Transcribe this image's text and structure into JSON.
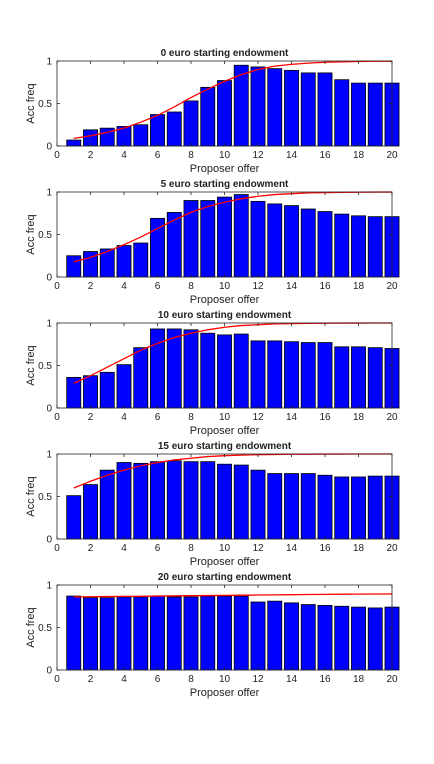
{
  "chart_data": [
    {
      "type": "bar",
      "title": "0 euro starting endowment",
      "xlabel": "Proposer offer",
      "ylabel": "Acc freq",
      "xlim": [
        0,
        20
      ],
      "ylim": [
        0,
        1
      ],
      "x_ticks": [
        0,
        2,
        4,
        6,
        8,
        10,
        12,
        14,
        16,
        18,
        20
      ],
      "y_ticks": [
        0,
        0.5,
        1
      ],
      "categories": [
        1,
        2,
        3,
        4,
        5,
        6,
        7,
        8,
        9,
        10,
        11,
        12,
        13,
        14,
        15,
        16,
        17,
        18,
        19,
        20
      ],
      "values": [
        0.07,
        0.19,
        0.21,
        0.23,
        0.25,
        0.37,
        0.4,
        0.53,
        0.69,
        0.77,
        0.95,
        0.93,
        0.91,
        0.89,
        0.86,
        0.86,
        0.78,
        0.74,
        0.74,
        0.74
      ],
      "fit_line": {
        "x": [
          1,
          2,
          3,
          4,
          5,
          6,
          7,
          8,
          9,
          10,
          11,
          12,
          13,
          14,
          15,
          16,
          17,
          18,
          19,
          20
        ],
        "y": [
          0.09,
          0.12,
          0.16,
          0.21,
          0.28,
          0.36,
          0.46,
          0.57,
          0.67,
          0.76,
          0.84,
          0.9,
          0.94,
          0.96,
          0.975,
          0.985,
          0.99,
          0.995,
          0.997,
          0.998
        ]
      },
      "bar_color": "#0000ff",
      "line_color": "#ff0000",
      "grid": false
    },
    {
      "type": "bar",
      "title": "5 euro starting endowment",
      "xlabel": "Proposer offer",
      "ylabel": "Acc freq",
      "xlim": [
        0,
        20
      ],
      "ylim": [
        0,
        1
      ],
      "x_ticks": [
        0,
        2,
        4,
        6,
        8,
        10,
        12,
        14,
        16,
        18,
        20
      ],
      "y_ticks": [
        0,
        0.5,
        1
      ],
      "categories": [
        1,
        2,
        3,
        4,
        5,
        6,
        7,
        8,
        9,
        10,
        11,
        12,
        13,
        14,
        15,
        16,
        17,
        18,
        19,
        20
      ],
      "values": [
        0.25,
        0.3,
        0.33,
        0.37,
        0.4,
        0.69,
        0.76,
        0.9,
        0.9,
        0.94,
        0.97,
        0.89,
        0.86,
        0.84,
        0.8,
        0.77,
        0.74,
        0.72,
        0.71,
        0.71
      ],
      "fit_line": {
        "x": [
          1,
          2,
          3,
          4,
          5,
          6,
          7,
          8,
          9,
          10,
          11,
          12,
          13,
          14,
          15,
          16,
          17,
          18,
          19,
          20
        ],
        "y": [
          0.18,
          0.23,
          0.3,
          0.38,
          0.47,
          0.57,
          0.67,
          0.76,
          0.83,
          0.88,
          0.92,
          0.95,
          0.97,
          0.98,
          0.99,
          0.993,
          0.996,
          0.998,
          0.999,
          0.999
        ]
      },
      "bar_color": "#0000ff",
      "line_color": "#ff0000",
      "grid": false
    },
    {
      "type": "bar",
      "title": "10 euro starting endowment",
      "xlabel": "Proposer offer",
      "ylabel": "Acc freq",
      "xlim": [
        0,
        20
      ],
      "ylim": [
        0,
        1
      ],
      "x_ticks": [
        0,
        2,
        4,
        6,
        8,
        10,
        12,
        14,
        16,
        18,
        20
      ],
      "y_ticks": [
        0,
        0.5,
        1
      ],
      "categories": [
        1,
        2,
        3,
        4,
        5,
        6,
        7,
        8,
        9,
        10,
        11,
        12,
        13,
        14,
        15,
        16,
        17,
        18,
        19,
        20
      ],
      "values": [
        0.36,
        0.38,
        0.42,
        0.51,
        0.71,
        0.93,
        0.93,
        0.92,
        0.88,
        0.86,
        0.87,
        0.79,
        0.79,
        0.78,
        0.77,
        0.77,
        0.72,
        0.72,
        0.71,
        0.7
      ],
      "fit_line": {
        "x": [
          1,
          2,
          3,
          4,
          5,
          6,
          7,
          8,
          9,
          10,
          11,
          12,
          13,
          14,
          15,
          16,
          17,
          18,
          19,
          20
        ],
        "y": [
          0.29,
          0.38,
          0.48,
          0.58,
          0.68,
          0.76,
          0.83,
          0.88,
          0.92,
          0.95,
          0.97,
          0.98,
          0.99,
          0.993,
          0.996,
          0.998,
          0.999,
          0.999,
          1.0,
          1.0
        ]
      },
      "bar_color": "#0000ff",
      "line_color": "#ff0000",
      "grid": false
    },
    {
      "type": "bar",
      "title": "15 euro starting endowment",
      "xlabel": "Proposer offer",
      "ylabel": "Acc freq",
      "xlim": [
        0,
        20
      ],
      "ylim": [
        0,
        1
      ],
      "x_ticks": [
        0,
        2,
        4,
        6,
        8,
        10,
        12,
        14,
        16,
        18,
        20
      ],
      "y_ticks": [
        0,
        0.5,
        1
      ],
      "categories": [
        1,
        2,
        3,
        4,
        5,
        6,
        7,
        8,
        9,
        10,
        11,
        12,
        13,
        14,
        15,
        16,
        17,
        18,
        19,
        20
      ],
      "values": [
        0.51,
        0.64,
        0.81,
        0.9,
        0.89,
        0.91,
        0.92,
        0.91,
        0.91,
        0.88,
        0.87,
        0.81,
        0.77,
        0.77,
        0.77,
        0.75,
        0.73,
        0.73,
        0.74,
        0.74
      ],
      "fit_line": {
        "x": [
          1,
          2,
          3,
          4,
          5,
          6,
          7,
          8,
          9,
          10,
          11,
          12,
          13,
          14,
          15,
          16,
          17,
          18,
          19,
          20
        ],
        "y": [
          0.6,
          0.68,
          0.75,
          0.81,
          0.86,
          0.9,
          0.93,
          0.95,
          0.97,
          0.98,
          0.987,
          0.992,
          0.995,
          0.997,
          0.998,
          0.999,
          0.999,
          1.0,
          1.0,
          1.0
        ]
      },
      "bar_color": "#0000ff",
      "line_color": "#ff0000",
      "grid": false
    },
    {
      "type": "bar",
      "title": "20 euro starting endowment",
      "xlabel": "Proposer offer",
      "ylabel": "Acc freq",
      "xlim": [
        0,
        20
      ],
      "ylim": [
        0,
        1
      ],
      "x_ticks": [
        0,
        2,
        4,
        6,
        8,
        10,
        12,
        14,
        16,
        18,
        20
      ],
      "y_ticks": [
        0,
        0.5,
        1
      ],
      "categories": [
        1,
        2,
        3,
        4,
        5,
        6,
        7,
        8,
        9,
        10,
        11,
        12,
        13,
        14,
        15,
        16,
        17,
        18,
        19,
        20
      ],
      "values": [
        0.87,
        0.85,
        0.85,
        0.86,
        0.86,
        0.87,
        0.86,
        0.86,
        0.87,
        0.87,
        0.87,
        0.8,
        0.81,
        0.79,
        0.77,
        0.76,
        0.75,
        0.74,
        0.73,
        0.74
      ],
      "fit_line": {
        "x": [
          1,
          2,
          3,
          4,
          5,
          6,
          7,
          8,
          9,
          10,
          11,
          12,
          13,
          14,
          15,
          16,
          17,
          18,
          19,
          20
        ],
        "y": [
          0.86,
          0.862,
          0.864,
          0.866,
          0.868,
          0.87,
          0.872,
          0.874,
          0.876,
          0.878,
          0.88,
          0.882,
          0.884,
          0.886,
          0.888,
          0.89,
          0.892,
          0.893,
          0.894,
          0.895
        ]
      },
      "bar_color": "#0000ff",
      "line_color": "#ff0000",
      "grid": false
    }
  ]
}
